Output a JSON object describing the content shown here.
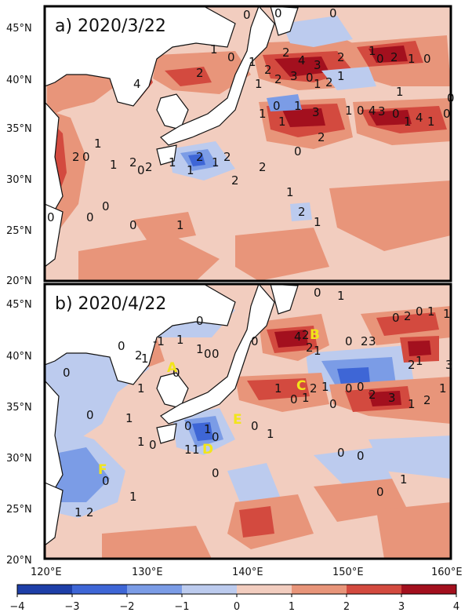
{
  "panels": [
    {
      "title": "a) 2020/3/22"
    },
    {
      "title": "b) 2020/4/22"
    }
  ],
  "lat_labels": [
    "45°N",
    "40°N",
    "35°N",
    "30°N",
    "25°N",
    "20°N"
  ],
  "lon_labels": [
    "120°E",
    "130°E",
    "140°E",
    "150°E",
    "160°E"
  ],
  "colorbar": {
    "ticks": [
      "−4",
      "−3",
      "−2",
      "−1",
      "0",
      "1",
      "2",
      "3",
      "4"
    ],
    "colors": [
      "#1e3fa8",
      "#3e66d6",
      "#7b9ce6",
      "#bccbee",
      "#f2cdbf",
      "#e8957a",
      "#d34a3f",
      "#a3101e"
    ]
  },
  "region_labels": [
    {
      "text": "A"
    },
    {
      "text": "B"
    },
    {
      "text": "C"
    },
    {
      "text": "D"
    },
    {
      "text": "E"
    },
    {
      "text": "F"
    }
  ],
  "contour_labels_a": [
    "0",
    "0",
    "0",
    "1",
    "0",
    "1",
    "2",
    "2",
    "1",
    "3",
    "0",
    "4",
    "2",
    "1",
    "1",
    "2",
    "3",
    "4",
    "2",
    "1",
    "0",
    "1",
    "3",
    "2",
    "0",
    "1",
    "1",
    "0",
    "4",
    "3",
    "0",
    "1",
    "4",
    "1",
    "0",
    "2",
    "1",
    "0",
    "2",
    "1",
    "0",
    "1",
    "0",
    "1",
    "0",
    "1",
    "0",
    "1",
    "1",
    "1",
    "2",
    "2",
    "2",
    "2",
    "2",
    "2",
    "2",
    "1",
    "0",
    "0",
    "2",
    "1",
    "1",
    "0",
    "0"
  ],
  "contour_labels_b": [
    "0",
    "1",
    "0",
    "1",
    "-1",
    "0",
    "1",
    "0",
    "0",
    "2",
    "1",
    "0",
    "0",
    "0",
    "4",
    "2",
    "2",
    "1",
    "0",
    "2",
    "3",
    "0",
    "2",
    "0",
    "1",
    "1",
    "3",
    "1",
    "2",
    "1",
    "0",
    "1",
    "2",
    "1",
    "0",
    "0",
    "0",
    "2",
    "3",
    "1",
    "2",
    "1",
    "1",
    "0",
    "1",
    "0",
    "1",
    "0",
    "0",
    "1",
    "0",
    "1",
    "1",
    "1",
    "0",
    "0",
    "1",
    "2",
    "1",
    "0",
    "0",
    "0",
    "1"
  ]
}
